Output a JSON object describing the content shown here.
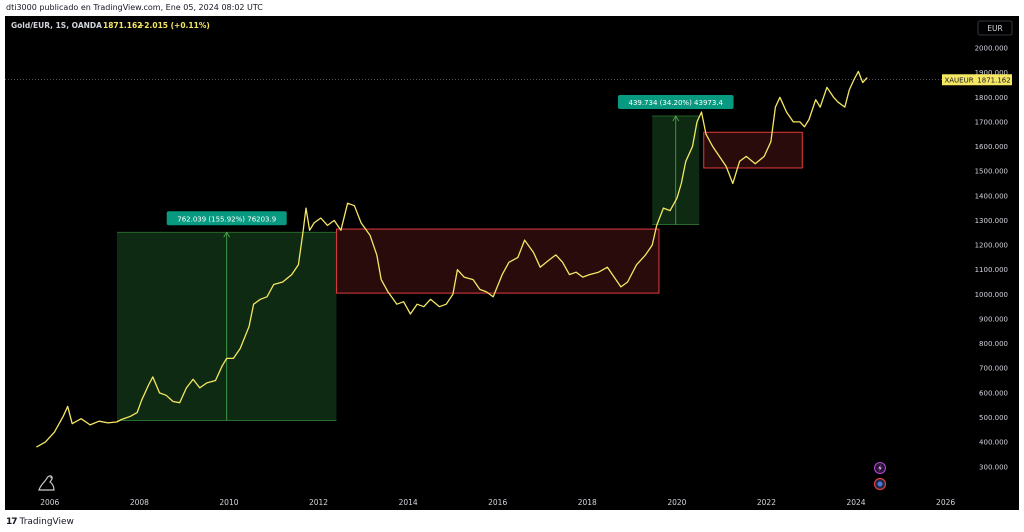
{
  "header": {
    "publisher_line": "dti3000 publicado en TradingView.com, Ene 05, 2024 08:02 UTC"
  },
  "legend": {
    "symbol": "Gold/EUR, 1S, OANDA",
    "last": "1871.162",
    "change": "+2.015 (+0.11%)"
  },
  "currency_button": "EUR",
  "price_tag": {
    "ticker": "XAUEUR",
    "value": "1871.162"
  },
  "footer": {
    "brand": "TradingView",
    "brand_mark": "17"
  },
  "colors": {
    "background": "#000000",
    "line": "#f5e663",
    "green_zone": "#0f2a12",
    "red_zone_fill": "#2a0b0b",
    "red_zone_border": "#e23b3b",
    "measure_label": "#089981",
    "axis_text": "#d1d4dc"
  },
  "chart_data": {
    "type": "line",
    "title": "Gold/EUR, 1S, OANDA",
    "xlabel": "",
    "ylabel": "",
    "xlim": [
      2005.0,
      2026.5
    ],
    "ylim": [
      230,
      2130
    ],
    "x_ticks": [
      2006,
      2008,
      2010,
      2012,
      2014,
      2016,
      2018,
      2020,
      2022,
      2024,
      2026
    ],
    "x_tick_labels": [
      "2006",
      "2008",
      "2010",
      "2012",
      "2014",
      "2016",
      "2018",
      "2020",
      "2022",
      "2024",
      "2026"
    ],
    "y_ticks": [
      300,
      400,
      500,
      600,
      700,
      800,
      900,
      1000,
      1100,
      1200,
      1300,
      1400,
      1500,
      1600,
      1700,
      1800,
      1900,
      2000
    ],
    "y_tick_labels": [
      "300.000",
      "400.000",
      "500.000",
      "600.000",
      "700.000",
      "800.000",
      "900.000",
      "1000.000",
      "1100.000",
      "1200.000",
      "1300.000",
      "1400.000",
      "1500.000",
      "1600.000",
      "1700.000",
      "1800.000",
      "1900.000",
      "2000.000"
    ],
    "last_price": 1871.162,
    "series": [
      {
        "points": [
          [
            2005.7,
            380
          ],
          [
            2005.9,
            400
          ],
          [
            2006.1,
            440
          ],
          [
            2006.3,
            505
          ],
          [
            2006.4,
            545
          ],
          [
            2006.5,
            475
          ],
          [
            2006.7,
            495
          ],
          [
            2006.9,
            470
          ],
          [
            2007.1,
            485
          ],
          [
            2007.3,
            478
          ],
          [
            2007.5,
            482
          ],
          [
            2007.6,
            492
          ],
          [
            2007.8,
            505
          ],
          [
            2007.95,
            520
          ],
          [
            2008.05,
            570
          ],
          [
            2008.2,
            630
          ],
          [
            2008.3,
            665
          ],
          [
            2008.45,
            600
          ],
          [
            2008.6,
            590
          ],
          [
            2008.75,
            565
          ],
          [
            2008.9,
            560
          ],
          [
            2009.05,
            620
          ],
          [
            2009.2,
            655
          ],
          [
            2009.35,
            620
          ],
          [
            2009.5,
            640
          ],
          [
            2009.7,
            650
          ],
          [
            2009.85,
            710
          ],
          [
            2009.95,
            740
          ],
          [
            2010.1,
            740
          ],
          [
            2010.25,
            780
          ],
          [
            2010.45,
            870
          ],
          [
            2010.55,
            960
          ],
          [
            2010.7,
            980
          ],
          [
            2010.85,
            990
          ],
          [
            2011.0,
            1040
          ],
          [
            2011.2,
            1050
          ],
          [
            2011.4,
            1080
          ],
          [
            2011.55,
            1120
          ],
          [
            2011.65,
            1250
          ],
          [
            2011.72,
            1350
          ],
          [
            2011.8,
            1260
          ],
          [
            2011.9,
            1290
          ],
          [
            2012.05,
            1310
          ],
          [
            2012.2,
            1280
          ],
          [
            2012.35,
            1300
          ],
          [
            2012.5,
            1260
          ],
          [
            2012.65,
            1370
          ],
          [
            2012.8,
            1360
          ],
          [
            2012.95,
            1290
          ],
          [
            2013.15,
            1240
          ],
          [
            2013.3,
            1160
          ],
          [
            2013.4,
            1060
          ],
          [
            2013.55,
            1010
          ],
          [
            2013.75,
            960
          ],
          [
            2013.9,
            970
          ],
          [
            2014.05,
            920
          ],
          [
            2014.2,
            960
          ],
          [
            2014.35,
            950
          ],
          [
            2014.5,
            980
          ],
          [
            2014.7,
            950
          ],
          [
            2014.85,
            960
          ],
          [
            2015.0,
            1000
          ],
          [
            2015.1,
            1100
          ],
          [
            2015.25,
            1070
          ],
          [
            2015.45,
            1060
          ],
          [
            2015.6,
            1020
          ],
          [
            2015.75,
            1010
          ],
          [
            2015.9,
            990
          ],
          [
            2016.1,
            1080
          ],
          [
            2016.25,
            1130
          ],
          [
            2016.45,
            1150
          ],
          [
            2016.6,
            1220
          ],
          [
            2016.8,
            1170
          ],
          [
            2016.95,
            1110
          ],
          [
            2017.15,
            1140
          ],
          [
            2017.3,
            1160
          ],
          [
            2017.45,
            1130
          ],
          [
            2017.6,
            1080
          ],
          [
            2017.75,
            1090
          ],
          [
            2017.9,
            1070
          ],
          [
            2018.05,
            1080
          ],
          [
            2018.25,
            1090
          ],
          [
            2018.45,
            1110
          ],
          [
            2018.6,
            1070
          ],
          [
            2018.75,
            1030
          ],
          [
            2018.9,
            1050
          ],
          [
            2019.1,
            1120
          ],
          [
            2019.3,
            1160
          ],
          [
            2019.45,
            1200
          ],
          [
            2019.55,
            1280
          ],
          [
            2019.7,
            1350
          ],
          [
            2019.85,
            1340
          ],
          [
            2020.0,
            1390
          ],
          [
            2020.1,
            1450
          ],
          [
            2020.2,
            1540
          ],
          [
            2020.35,
            1600
          ],
          [
            2020.45,
            1700
          ],
          [
            2020.55,
            1740
          ],
          [
            2020.65,
            1650
          ],
          [
            2020.8,
            1600
          ],
          [
            2020.95,
            1560
          ],
          [
            2021.1,
            1520
          ],
          [
            2021.25,
            1450
          ],
          [
            2021.4,
            1540
          ],
          [
            2021.55,
            1560
          ],
          [
            2021.75,
            1530
          ],
          [
            2021.95,
            1560
          ],
          [
            2022.1,
            1620
          ],
          [
            2022.2,
            1760
          ],
          [
            2022.3,
            1800
          ],
          [
            2022.45,
            1740
          ],
          [
            2022.6,
            1700
          ],
          [
            2022.75,
            1700
          ],
          [
            2022.85,
            1680
          ],
          [
            2022.95,
            1710
          ],
          [
            2023.1,
            1790
          ],
          [
            2023.2,
            1760
          ],
          [
            2023.35,
            1840
          ],
          [
            2023.5,
            1800
          ],
          [
            2023.6,
            1780
          ],
          [
            2023.75,
            1760
          ],
          [
            2023.85,
            1830
          ],
          [
            2023.95,
            1870
          ],
          [
            2024.05,
            1905
          ],
          [
            2024.15,
            1860
          ],
          [
            2024.25,
            1880
          ]
        ]
      }
    ],
    "annotations": [
      {
        "kind": "measure",
        "label": "762.039 (155.92%) 76203.9",
        "x_from": 2007.5,
        "x_to": 2012.4,
        "y_from": 488,
        "y_to": 1252
      },
      {
        "kind": "measure",
        "label": "439.734 (34.20%) 43973.4",
        "x_from": 2019.45,
        "x_to": 2020.5,
        "y_from": 1283,
        "y_to": 1724
      },
      {
        "kind": "range_box",
        "x_from": 2012.4,
        "x_to": 2019.6,
        "y_from": 1005,
        "y_to": 1265
      },
      {
        "kind": "range_box",
        "x_from": 2020.6,
        "x_to": 2022.8,
        "y_from": 1513,
        "y_to": 1658
      }
    ]
  }
}
